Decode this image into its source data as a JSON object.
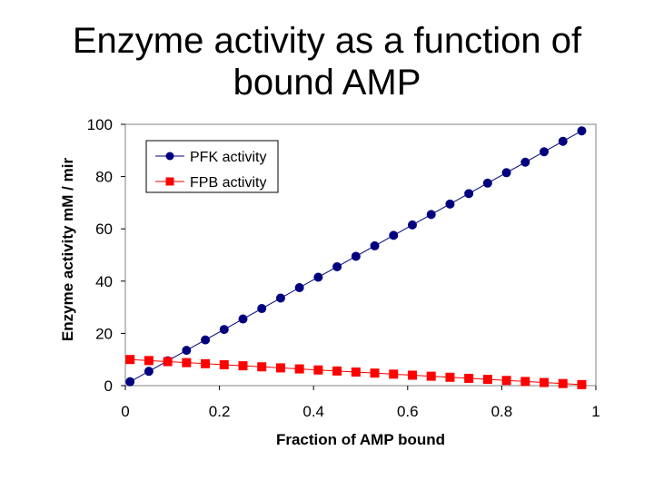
{
  "chart_data": {
    "type": "line",
    "title": [
      "Enzyme activity as a function of",
      "bound AMP"
    ],
    "xlabel": "Fraction of AMP bound",
    "ylabel": "Enzyme activity mM / mir",
    "xlim": [
      0,
      1
    ],
    "ylim": [
      0,
      100
    ],
    "x_ticks": [
      "0",
      "0.2",
      "0.4",
      "0.6",
      "0.8",
      "1"
    ],
    "y_ticks": [
      "0",
      "20",
      "40",
      "60",
      "80",
      "100"
    ],
    "grid": false,
    "legend_position": "top-left",
    "x": [
      0.01,
      0.05,
      0.09,
      0.13,
      0.17,
      0.21,
      0.25,
      0.29,
      0.33,
      0.37,
      0.41,
      0.45,
      0.49,
      0.53,
      0.57,
      0.61,
      0.65,
      0.69,
      0.73,
      0.77,
      0.81,
      0.85,
      0.89,
      0.93,
      0.97
    ],
    "series": [
      {
        "name": "PFK activity",
        "color": "#00007f",
        "marker": "circle",
        "values": [
          1.5,
          5.5,
          9.5,
          13.5,
          17.5,
          21.5,
          25.5,
          29.5,
          33.5,
          37.5,
          41.5,
          45.5,
          49.5,
          53.5,
          57.5,
          61.5,
          65.5,
          69.5,
          73.5,
          77.5,
          81.5,
          85.5,
          89.5,
          93.5,
          97.5
        ]
      },
      {
        "name": "FPB activity",
        "color": "#ff0000",
        "marker": "square",
        "values": [
          10,
          9.6,
          9.2,
          8.8,
          8.4,
          8,
          7.6,
          7.2,
          6.8,
          6.4,
          6,
          5.6,
          5.2,
          4.8,
          4.4,
          4,
          3.6,
          3.2,
          2.8,
          2.4,
          2,
          1.6,
          1.2,
          0.8,
          0.4
        ]
      }
    ]
  }
}
